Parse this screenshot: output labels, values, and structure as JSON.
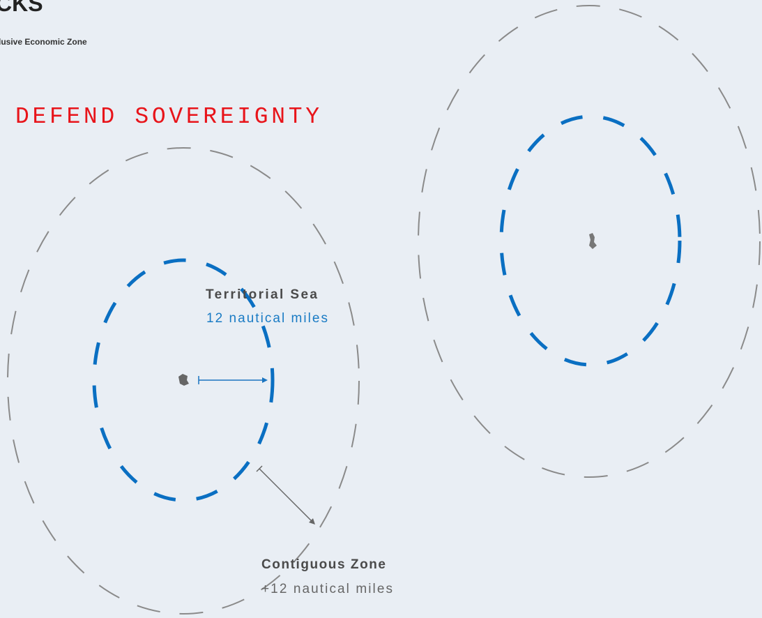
{
  "header": {
    "title": "CKS",
    "subtitle": "lusive Economic Zone"
  },
  "overlay": {
    "text": "DEFEND SOVEREIGNTY"
  },
  "labels": {
    "territorial_sea": {
      "name": "Territorial Sea",
      "distance": "12 nautical miles"
    },
    "contiguous_zone": {
      "name": "Contiguous Zone",
      "distance": "+12 nautical miles"
    }
  }
}
